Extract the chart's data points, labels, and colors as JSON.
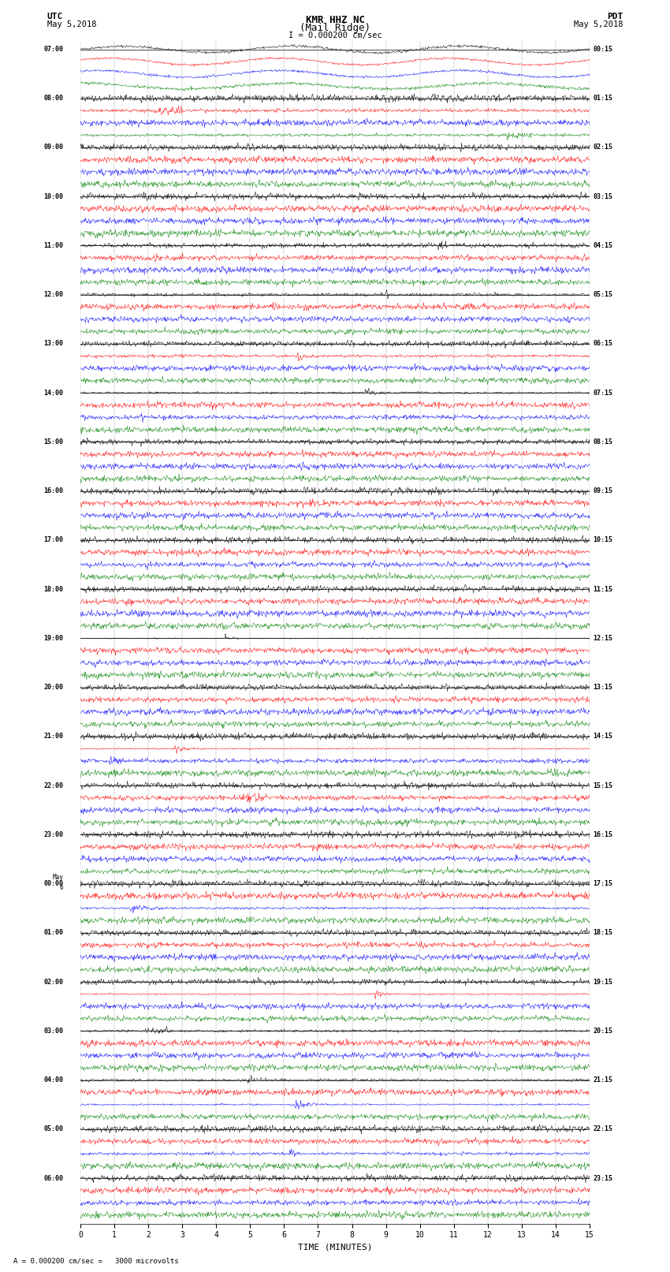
{
  "title_line1": "KMR HHZ NC",
  "title_line2": "(Mail Ridge)",
  "scale_text": "I = 0.000200 cm/sec",
  "bottom_scale": "= 0.000200 cm/sec =   3000 microvolts",
  "utc_label": "UTC",
  "pdt_label": "PDT",
  "date_left": "May 5,2018",
  "date_right": "May 5,2018",
  "xlabel": "TIME (MINUTES)",
  "xmin": 0,
  "xmax": 15,
  "xticks": [
    0,
    1,
    2,
    3,
    4,
    5,
    6,
    7,
    8,
    9,
    10,
    11,
    12,
    13,
    14,
    15
  ],
  "utc_hour_labels": [
    "07:00",
    "08:00",
    "09:00",
    "10:00",
    "11:00",
    "12:00",
    "13:00",
    "14:00",
    "15:00",
    "16:00",
    "17:00",
    "18:00",
    "19:00",
    "20:00",
    "21:00",
    "22:00",
    "23:00",
    "00:00",
    "01:00",
    "02:00",
    "03:00",
    "04:00",
    "05:00",
    "06:00"
  ],
  "pdt_hour_labels": [
    "00:15",
    "01:15",
    "02:15",
    "03:15",
    "04:15",
    "05:15",
    "06:15",
    "07:15",
    "08:15",
    "09:15",
    "10:15",
    "11:15",
    "12:15",
    "13:15",
    "14:15",
    "15:15",
    "16:15",
    "17:15",
    "18:15",
    "19:15",
    "20:15",
    "21:15",
    "22:15",
    "23:15"
  ],
  "n_hours": 24,
  "traces_per_hour": 4,
  "trace_colors": [
    "black",
    "red",
    "blue",
    "green"
  ],
  "bg_color": "white",
  "noise_seed": 42,
  "fig_width": 8.5,
  "fig_height": 16.13
}
